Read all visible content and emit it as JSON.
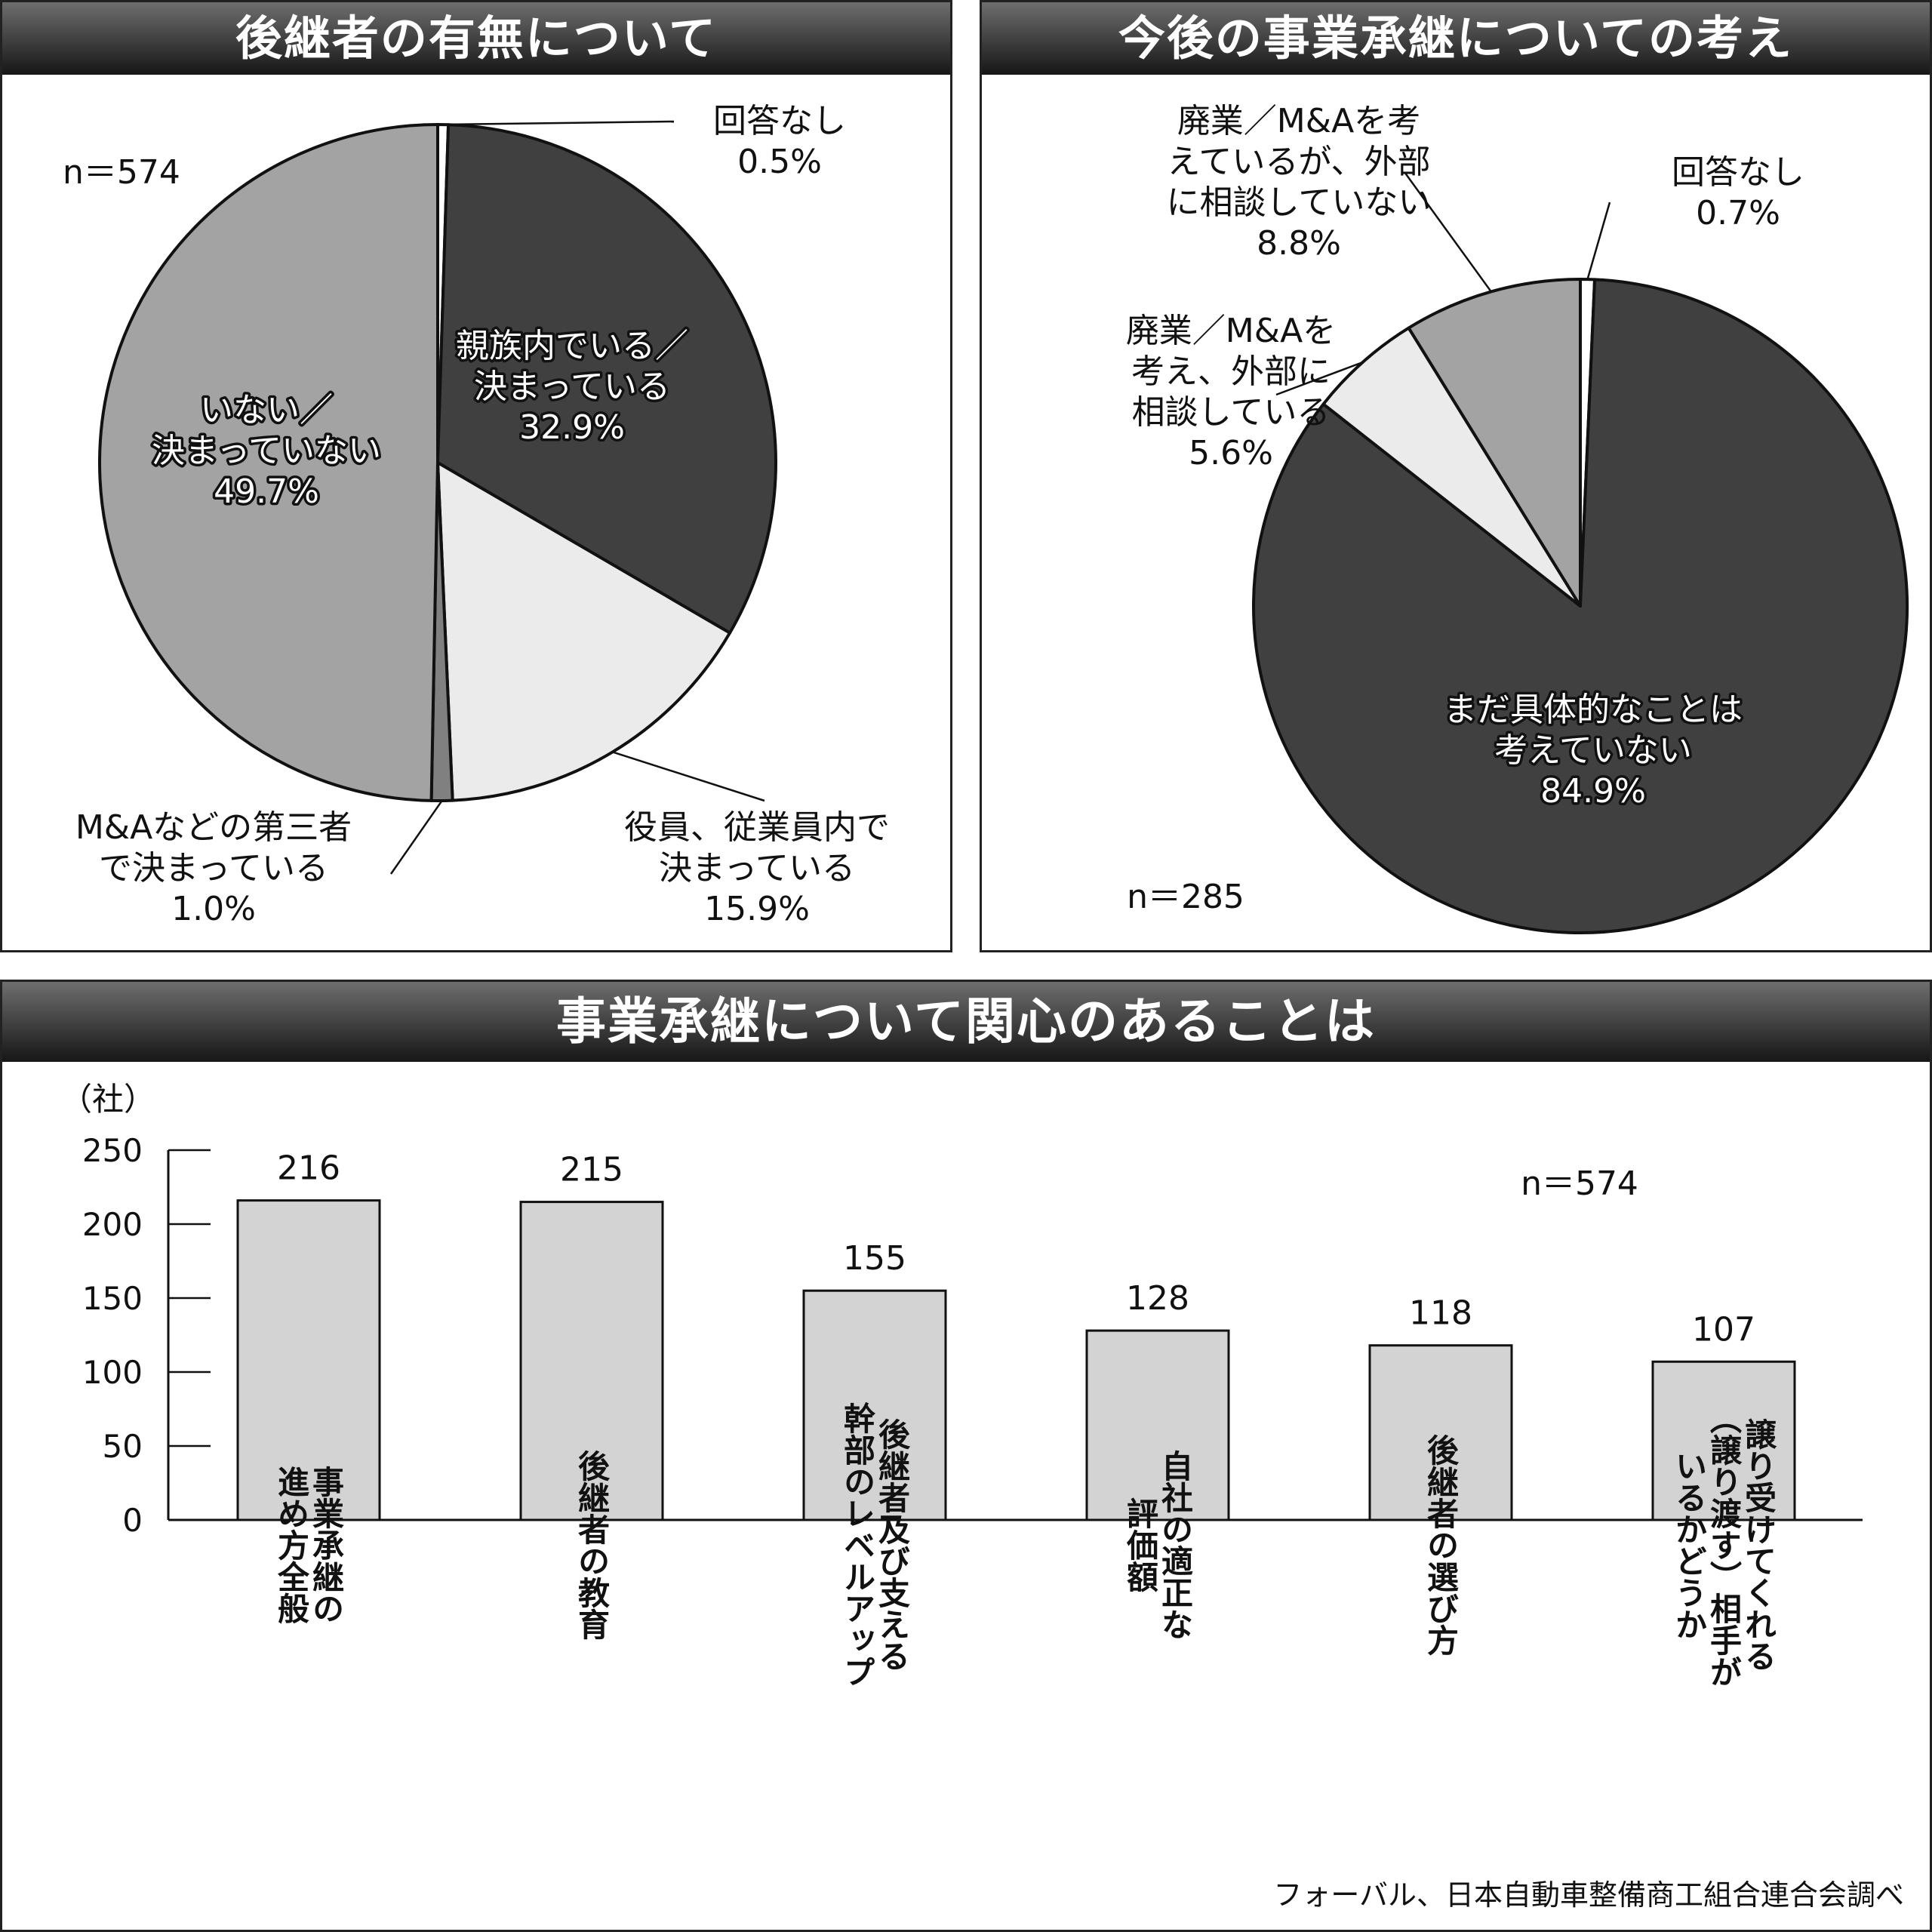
{
  "panels": {
    "successor": {
      "title": "後継者の有無について",
      "n": "n＝574"
    },
    "plans": {
      "title": "今後の事業承継についての考え",
      "n": "n＝285"
    },
    "interest": {
      "title": "事業承継について関心のあることは",
      "n": "n＝574"
    }
  },
  "source": "フォーバル、日本自動車整備商工組合連合会調べ",
  "colors": {
    "dark": "#404040",
    "light": "#ebebeb",
    "mid": "#a3a3a3",
    "bar": "#d3d3d3",
    "header_top": "#6e6e6e",
    "header_bottom": "#161616"
  },
  "chart_data": [
    {
      "type": "pie",
      "title": "後継者の有無について",
      "slices": [
        {
          "lines": [
            "回答なし",
            "0.5%"
          ],
          "value": 0.5,
          "color": "#ffffff"
        },
        {
          "lines": [
            "親族内でいる／",
            "決まっている",
            "32.9%"
          ],
          "value": 32.9,
          "color": "#404040"
        },
        {
          "lines": [
            "役員、従業員内で",
            "決まっている",
            "15.9%"
          ],
          "value": 15.9,
          "color": "#ebebeb"
        },
        {
          "lines": [
            "M&Aなどの第三者",
            "で決まっている",
            "1.0%"
          ],
          "value": 1.0,
          "color": "#808080"
        },
        {
          "lines": [
            "いない／",
            "決まっていない",
            "49.7%"
          ],
          "value": 49.7,
          "color": "#a3a3a3"
        }
      ]
    },
    {
      "type": "pie",
      "title": "今後の事業承継についての考え",
      "slices": [
        {
          "lines": [
            "回答なし",
            "0.7%"
          ],
          "value": 0.7,
          "color": "#ffffff"
        },
        {
          "lines": [
            "まだ具体的なことは",
            "考えていない",
            "84.9%"
          ],
          "value": 84.9,
          "color": "#404040"
        },
        {
          "lines": [
            "廃業／M&Aを",
            "考え、外部に",
            "相談している",
            "5.6%"
          ],
          "value": 5.6,
          "color": "#ebebeb"
        },
        {
          "lines": [
            "廃業／M&Aを考",
            "えているが、外部",
            "に相談していない",
            "8.8%"
          ],
          "value": 8.8,
          "color": "#a3a3a3"
        }
      ]
    },
    {
      "type": "bar",
      "title": "事業承継について関心のあることは",
      "ylabel": "（社）",
      "ylim": [
        0,
        250
      ],
      "yticks": [
        0,
        50,
        100,
        150,
        200,
        250
      ],
      "categories": [
        [
          "事業承継の",
          "進め方全般"
        ],
        [
          "後継者の教育"
        ],
        [
          "後継者及び支える",
          "幹部のレベルアップ"
        ],
        [
          "自社の適正な",
          "評価額"
        ],
        [
          "後継者の選び方"
        ],
        [
          "譲り受けてくれる",
          "（譲り渡す）相手が",
          "いるかどうか"
        ]
      ],
      "values": [
        216,
        215,
        155,
        128,
        118,
        107
      ]
    }
  ]
}
